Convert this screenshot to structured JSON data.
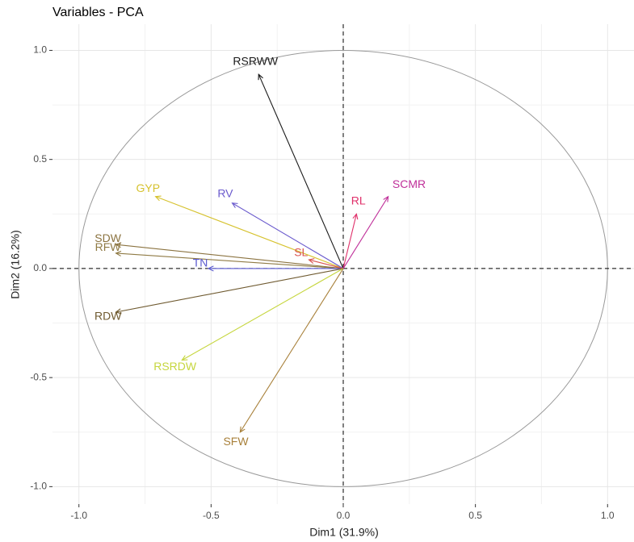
{
  "chart_data": {
    "type": "pca-variables",
    "title": "Variables - PCA",
    "xlabel": "Dim1 (31.9%)",
    "ylabel": "Dim2 (16.2%)",
    "xlim": [
      -1.1,
      1.1
    ],
    "ylim": [
      -1.08,
      1.12
    ],
    "xticks": [
      {
        "value": -1,
        "label": "-1.0"
      },
      {
        "value": -0.5,
        "label": "-0.5"
      },
      {
        "value": 0,
        "label": "0.0"
      },
      {
        "value": 0.5,
        "label": "0.5"
      },
      {
        "value": 1,
        "label": "1.0"
      }
    ],
    "yticks": [
      {
        "value": -1,
        "label": "-1.0"
      },
      {
        "value": -0.5,
        "label": "-0.5"
      },
      {
        "value": 0,
        "label": "0.0"
      },
      {
        "value": 0.5,
        "label": "0.5"
      },
      {
        "value": 1,
        "label": "1.0"
      }
    ],
    "grid": true,
    "series": [
      {
        "name": "RSRWW",
        "color": "#1a1a1a",
        "x": -0.32,
        "y": 0.89
      },
      {
        "name": "GYP",
        "color": "#d6c22e",
        "x": -0.71,
        "y": 0.33
      },
      {
        "name": "RV",
        "color": "#6a5acd",
        "x": -0.42,
        "y": 0.3
      },
      {
        "name": "SDW",
        "color": "#8b7340",
        "x": -0.86,
        "y": 0.11
      },
      {
        "name": "RFW",
        "color": "#8f7a44",
        "x": -0.86,
        "y": 0.07
      },
      {
        "name": "TN",
        "color": "#5a5ad0",
        "x": -0.51,
        "y": 0.0
      },
      {
        "name": "SL",
        "color": "#d9534f",
        "x": -0.13,
        "y": 0.04
      },
      {
        "name": "RL",
        "color": "#e0306a",
        "x": 0.05,
        "y": 0.25
      },
      {
        "name": "SCMR",
        "color": "#c0309a",
        "x": 0.17,
        "y": 0.33
      },
      {
        "name": "RDW",
        "color": "#6f5a30",
        "x": -0.86,
        "y": -0.2
      },
      {
        "name": "RSRDW",
        "color": "#c6d63e",
        "x": -0.61,
        "y": -0.42
      },
      {
        "name": "SFW",
        "color": "#a8803a",
        "x": -0.39,
        "y": -0.75
      }
    ]
  }
}
